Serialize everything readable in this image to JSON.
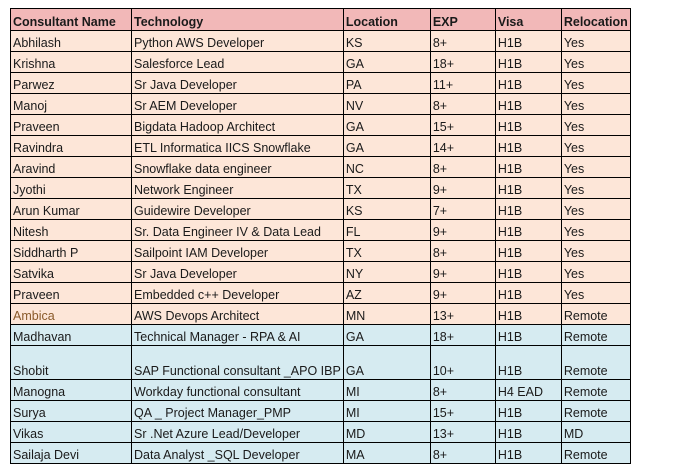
{
  "table": {
    "headers": [
      "Consultant Name",
      "Technology",
      "Location",
      "EXP",
      "Visa",
      "Relocation"
    ],
    "colors": {
      "header_bg": "#f2b8b8",
      "yes_rows_bg": "#fde6d8",
      "remote_rows_bg": "#d6ebf1",
      "border": "#000000"
    },
    "rows": [
      {
        "name": "Abhilash",
        "technology": "Python AWS Developer",
        "location": "KS",
        "exp": "8+",
        "visa": "H1B",
        "relocation": "Yes"
      },
      {
        "name": "Krishna",
        "technology": "Salesforce Lead",
        "location": "GA",
        "exp": "18+",
        "visa": "H1B",
        "relocation": "Yes"
      },
      {
        "name": "Parwez",
        "technology": "Sr Java Developer",
        "location": "PA",
        "exp": "11+",
        "visa": "H1B",
        "relocation": "Yes"
      },
      {
        "name": "Manoj",
        "technology": "Sr AEM Developer",
        "location": "NV",
        "exp": "8+",
        "visa": "H1B",
        "relocation": "Yes"
      },
      {
        "name": "Praveen",
        "technology": "Bigdata Hadoop Architect",
        "location": "GA",
        "exp": "15+",
        "visa": "H1B",
        "relocation": "Yes"
      },
      {
        "name": "Ravindra",
        "technology": "ETL Informatica IICS Snowflake",
        "location": "GA",
        "exp": "14+",
        "visa": "H1B",
        "relocation": "Yes"
      },
      {
        "name": "Aravind",
        "technology": "Snowflake data engineer",
        "location": "NC",
        "exp": "8+",
        "visa": "H1B",
        "relocation": "Yes"
      },
      {
        "name": "Jyothi",
        "technology": "Network Engineer",
        "location": "TX",
        "exp": "9+",
        "visa": "H1B",
        "relocation": "Yes"
      },
      {
        "name": "Arun Kumar",
        "technology": "Guidewire Developer",
        "location": "KS",
        "exp": "7+",
        "visa": "H1B",
        "relocation": "Yes"
      },
      {
        "name": "Nitesh",
        "technology": "Sr. Data Engineer IV & Data Lead",
        "location": "FL",
        "exp": "9+",
        "visa": "H1B",
        "relocation": "Yes"
      },
      {
        "name": "Siddharth P",
        "technology": "Sailpoint IAM Developer",
        "location": "TX",
        "exp": "8+",
        "visa": "H1B",
        "relocation": "Yes"
      },
      {
        "name": "Satvika",
        "technology": "Sr Java Developer",
        "location": "NY",
        "exp": "9+",
        "visa": "H1B",
        "relocation": "Yes"
      },
      {
        "name": "Praveen",
        "technology": "Embedded c++ Developer",
        "location": "AZ",
        "exp": "9+",
        "visa": "H1B",
        "relocation": "Yes"
      },
      {
        "name": "Ambica",
        "technology": "AWS Devops Architect",
        "location": "MN",
        "exp": "13+",
        "visa": "H1B",
        "relocation": "Remote"
      },
      {
        "name": "Madhavan",
        "technology": "Technical Manager - RPA & AI",
        "location": "GA",
        "exp": "18+",
        "visa": "H1B",
        "relocation": "Remote"
      },
      {
        "name": "Shobit",
        "technology": "SAP Functional consultant _APO IBP",
        "location": "GA",
        "exp": "10+",
        "visa": "H1B",
        "relocation": "Remote"
      },
      {
        "name": "Manogna",
        "technology": "Workday functional consultant",
        "location": "MI",
        "exp": "8+",
        "visa": "H4 EAD",
        "relocation": "Remote"
      },
      {
        "name": "Surya",
        "technology": "QA _ Project Manager_PMP",
        "location": "MI",
        "exp": "15+",
        "visa": "H1B",
        "relocation": "Remote"
      },
      {
        "name": "Vikas",
        "technology": "Sr .Net Azure Lead/Developer",
        "location": "MD",
        "exp": "13+",
        "visa": "H1B",
        "relocation": "MD"
      },
      {
        "name": "Sailaja Devi",
        "technology": "Data Analyst _SQL Developer",
        "location": "MA",
        "exp": "8+",
        "visa": "H1B",
        "relocation": "Remote"
      }
    ]
  }
}
